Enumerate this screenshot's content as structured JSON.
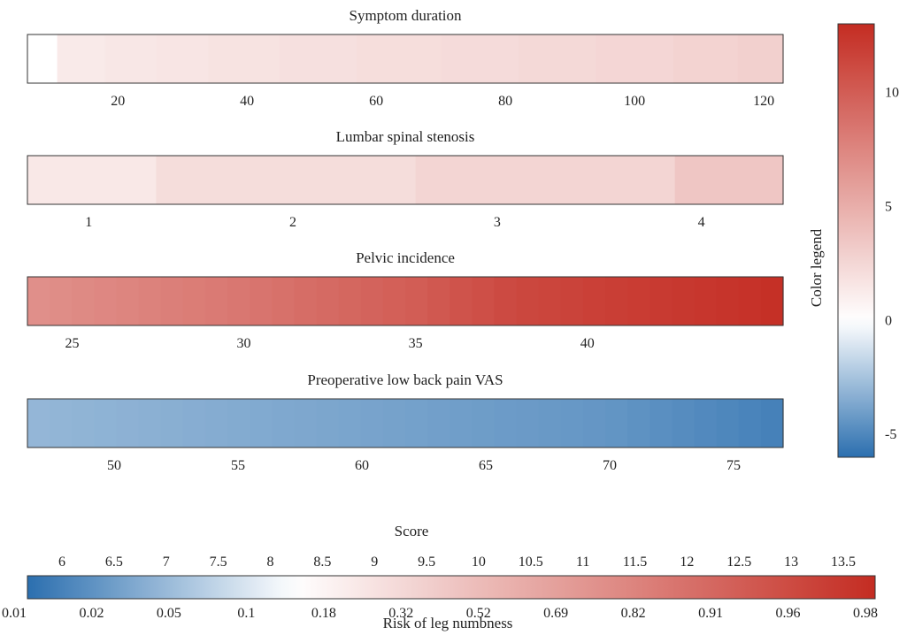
{
  "chart_data": {
    "type": "heatmap",
    "colorbar": {
      "label": "Color legend",
      "range": [
        -6,
        13
      ],
      "ticks": [
        -5,
        0,
        5,
        10
      ],
      "neg_color": "#2b6faf",
      "zero_color": "#ffffff",
      "pos_color": "#c42c22"
    },
    "panels": [
      {
        "title": "Symptom duration",
        "range": [
          6,
          123
        ],
        "ticks": [
          20,
          40,
          60,
          80,
          100,
          120
        ],
        "bands": [
          {
            "from": 6,
            "to": 10.6,
            "value": 0
          },
          {
            "from": 10.6,
            "to": 18,
            "value": 1.3
          },
          {
            "from": 18,
            "to": 26,
            "value": 1.45
          },
          {
            "from": 26,
            "to": 34,
            "value": 1.6
          },
          {
            "from": 34,
            "to": 45,
            "value": 1.75
          },
          {
            "from": 45,
            "to": 57,
            "value": 1.9
          },
          {
            "from": 57,
            "to": 70,
            "value": 2.05
          },
          {
            "from": 70,
            "to": 82,
            "value": 2.2
          },
          {
            "from": 82,
            "to": 94,
            "value": 2.35
          },
          {
            "from": 94,
            "to": 106,
            "value": 2.5
          },
          {
            "from": 106,
            "to": 116,
            "value": 2.7
          },
          {
            "from": 116,
            "to": 123,
            "value": 2.9
          }
        ]
      },
      {
        "title": "Lumbar spinal stenosis",
        "range": [
          0.7,
          4.4
        ],
        "ticks": [
          1,
          2,
          3,
          4
        ],
        "bands": [
          {
            "from": 0.7,
            "to": 1.33,
            "value": 1.4
          },
          {
            "from": 1.33,
            "to": 2.6,
            "value": 2.1
          },
          {
            "from": 2.6,
            "to": 3.87,
            "value": 2.6
          },
          {
            "from": 3.87,
            "to": 4.4,
            "value": 3.5
          }
        ]
      },
      {
        "title": "Pelvic incidence",
        "range": [
          23.7,
          45.7
        ],
        "ticks": [
          25,
          30,
          35,
          40
        ],
        "gradient": [
          {
            "x": 23.7,
            "value": 6.8
          },
          {
            "x": 30,
            "value": 8.4
          },
          {
            "x": 35,
            "value": 10
          },
          {
            "x": 38,
            "value": 11.3
          },
          {
            "x": 41,
            "value": 11.9
          },
          {
            "x": 45.7,
            "value": 12.8
          }
        ]
      },
      {
        "title": "Preoperative low back pain VAS",
        "range": [
          46.5,
          77
        ],
        "ticks": [
          50,
          55,
          60,
          65,
          70,
          75
        ],
        "gradient": [
          {
            "x": 46.5,
            "value": -3.0
          },
          {
            "x": 60,
            "value": -3.8
          },
          {
            "x": 70,
            "value": -4.4
          },
          {
            "x": 77,
            "value": -5.3
          }
        ]
      }
    ],
    "score_bar": {
      "title": "Score",
      "xlabel": "Risk of leg numbness",
      "score_ticks": [
        "6",
        "6.5",
        "7",
        "7.5",
        "8",
        "8.5",
        "9",
        "9.5",
        "10",
        "10.5",
        "11",
        "11.5",
        "12",
        "12.5",
        "13",
        "13.5"
      ],
      "risk_ticks": [
        "0.01",
        "0.02",
        "0.05",
        "0.1",
        "0.18",
        "0.32",
        "0.52",
        "0.69",
        "0.82",
        "0.91",
        "0.96",
        "0.98"
      ]
    }
  }
}
